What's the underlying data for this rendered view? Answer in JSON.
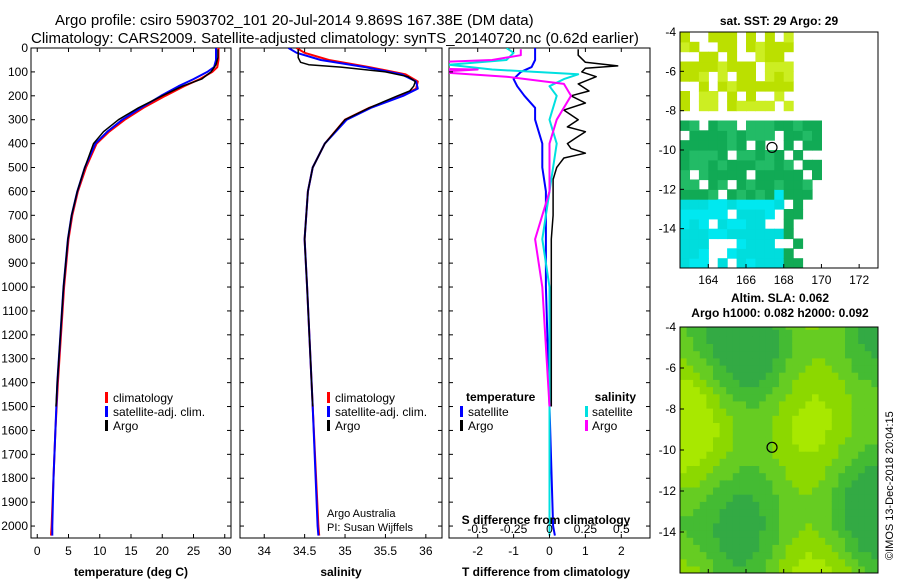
{
  "header": {
    "title_line1": "Argo profile: csiro 5903702_101 20-Jul-2014 9.869S 167.38E (DM data)",
    "title_line2": "Climatology: CARS2009. Satellite-adjusted climatology: synTS_20140720.nc (0.62d earlier)"
  },
  "colors": {
    "climatology": "#ff0000",
    "satellite": "#0000ff",
    "argo": "#000000",
    "salinity_satellite": "#00e0e0",
    "salinity_argo": "#ff00ff"
  },
  "chart_data": [
    {
      "id": "temperature",
      "type": "line",
      "xlabel": "temperature (deg C)",
      "ylabel": "",
      "xlim": [
        -1,
        31
      ],
      "ylim": [
        2050,
        0
      ],
      "x_ticks": [
        0,
        5,
        10,
        15,
        20,
        25,
        30
      ],
      "y_ticks": [
        0,
        100,
        200,
        300,
        400,
        500,
        600,
        700,
        800,
        900,
        1000,
        1100,
        1200,
        1300,
        1400,
        1500,
        1600,
        1700,
        1800,
        1900,
        2000
      ],
      "legend": {
        "placement": "center-right",
        "labels": [
          "climatology",
          "satellite-adj. clim.",
          "Argo"
        ]
      },
      "series": [
        {
          "name": "climatology",
          "color": "#ff0000",
          "depth": [
            0,
            50,
            80,
            100,
            130,
            160,
            200,
            250,
            300,
            350,
            400,
            500,
            600,
            700,
            800,
            1000,
            1200,
            1400,
            1600,
            1800,
            2000,
            2040
          ],
          "values": [
            29.0,
            29.0,
            28.8,
            28.0,
            26.0,
            23.5,
            20.5,
            17.0,
            14.0,
            11.5,
            9.5,
            7.8,
            6.5,
            5.6,
            5.0,
            4.3,
            3.8,
            3.3,
            2.9,
            2.6,
            2.3,
            2.2
          ]
        },
        {
          "name": "satellite-adj. clim.",
          "color": "#0000ff",
          "depth": [
            0,
            50,
            80,
            100,
            130,
            160,
            200,
            250,
            300,
            350,
            400,
            500,
            600,
            700,
            800,
            1000,
            1200,
            1400,
            1600,
            1800,
            2000,
            2040
          ],
          "values": [
            28.6,
            28.6,
            28.3,
            27.2,
            25.0,
            22.6,
            19.8,
            16.6,
            13.6,
            11.2,
            9.3,
            7.6,
            6.4,
            5.5,
            4.9,
            4.2,
            3.7,
            3.2,
            2.9,
            2.6,
            2.4,
            2.4
          ]
        },
        {
          "name": "Argo",
          "color": "#000000",
          "depth": [
            5,
            40,
            70,
            100,
            130,
            160,
            200,
            250,
            300,
            350,
            400,
            500,
            600,
            700,
            800,
            1000,
            1200,
            1400,
            1500
          ],
          "values": [
            28.9,
            28.9,
            28.6,
            27.8,
            26.3,
            23.2,
            20.0,
            16.2,
            13.0,
            10.6,
            9.0,
            7.6,
            6.4,
            5.5,
            4.9,
            4.2,
            3.7,
            3.2,
            3.0
          ]
        }
      ]
    },
    {
      "id": "salinity",
      "type": "line",
      "xlabel": "salinity",
      "ylabel": "",
      "xlim": [
        33.7,
        36.2
      ],
      "ylim": [
        2050,
        0
      ],
      "x_ticks": [
        34,
        34.5,
        35,
        35.5,
        36
      ],
      "x_tick_labels": [
        "34",
        "34.5",
        "35",
        "35.5",
        "36"
      ],
      "legend": {
        "placement": "center-right",
        "labels": [
          "climatology",
          "satellite-adj. clim.",
          "Argo"
        ]
      },
      "annotations": [
        "Argo Australia",
        "PI: Susan Wijffels"
      ],
      "series": [
        {
          "name": "climatology",
          "color": "#ff0000",
          "depth": [
            0,
            20,
            50,
            80,
            110,
            140,
            170,
            200,
            250,
            300,
            400,
            500,
            600,
            800,
            1000,
            1500,
            2000,
            2040
          ],
          "values": [
            34.4,
            34.5,
            34.8,
            35.3,
            35.75,
            35.9,
            35.88,
            35.7,
            35.3,
            35.0,
            34.75,
            34.6,
            34.54,
            34.5,
            34.53,
            34.6,
            34.67,
            34.68
          ]
        },
        {
          "name": "satellite-adj. clim.",
          "color": "#0000ff",
          "depth": [
            0,
            20,
            50,
            80,
            110,
            140,
            170,
            200,
            250,
            300,
            400,
            500,
            600,
            800,
            1000,
            1500,
            2000,
            2040
          ],
          "values": [
            34.3,
            34.4,
            34.7,
            35.25,
            35.7,
            35.88,
            35.9,
            35.72,
            35.32,
            35.02,
            34.75,
            34.6,
            34.54,
            34.5,
            34.53,
            34.6,
            34.66,
            34.67
          ]
        },
        {
          "name": "Argo",
          "color": "#000000",
          "depth": [
            5,
            20,
            40,
            60,
            70,
            80,
            100,
            120,
            140,
            160,
            180,
            200,
            250,
            300,
            400,
            500,
            600,
            800,
            1000,
            1500
          ],
          "values": [
            34.42,
            34.42,
            34.42,
            34.45,
            34.55,
            34.95,
            35.5,
            35.78,
            35.87,
            35.85,
            35.8,
            35.65,
            35.3,
            35.0,
            34.75,
            34.6,
            34.54,
            34.5,
            34.53,
            34.6
          ]
        }
      ]
    },
    {
      "id": "difference",
      "type": "line",
      "xlabel": "T difference from climatology",
      "ylabel": "",
      "xlim": [
        -2.8,
        2.8
      ],
      "ylim": [
        2050,
        0
      ],
      "x_ticks": [
        -2,
        -1,
        0,
        1,
        2
      ],
      "x_tick_labels": [
        "-2",
        "-1",
        "0",
        "1",
        "2"
      ],
      "top_axis_label": "S difference from climatology",
      "top_ticks": [
        -0.5,
        -0.25,
        0,
        0.25,
        0.5
      ],
      "top_tick_labels": [
        "-0.5",
        "-0.25",
        "0",
        "0.25",
        "0.5"
      ],
      "legend": {
        "placement": "center",
        "temperature_heading": "temperature",
        "salinity_heading": "salinity",
        "labels": [
          "satellite",
          "Argo"
        ]
      },
      "series": [
        {
          "name": "temperature satellite",
          "color": "#0000ff",
          "depth": [
            0,
            50,
            80,
            100,
            130,
            160,
            200,
            250,
            300,
            350,
            400,
            500,
            600,
            800,
            1000,
            1500,
            2000,
            2040
          ],
          "values": [
            -0.4,
            -0.4,
            -0.5,
            -0.8,
            -1.0,
            -0.9,
            -0.7,
            -0.4,
            -0.4,
            -0.3,
            -0.2,
            -0.2,
            -0.1,
            -0.1,
            -0.1,
            0.0,
            0.1,
            0.15
          ]
        },
        {
          "name": "temperature Argo",
          "color": "#000000",
          "depth": [
            5,
            30,
            60,
            75,
            85,
            100,
            120,
            150,
            180,
            200,
            230,
            260,
            300,
            330,
            350,
            380,
            400,
            420,
            440,
            460,
            480,
            500,
            550,
            600,
            700,
            800,
            1000,
            1500
          ],
          "values": [
            0.8,
            0.8,
            1.0,
            1.9,
            1.0,
            0.9,
            1.3,
            0.8,
            1.1,
            0.6,
            1.0,
            0.4,
            0.8,
            0.5,
            1.0,
            0.7,
            0.5,
            0.6,
            1.0,
            0.4,
            0.3,
            0.2,
            0.1,
            0.1,
            0.1,
            0.05,
            0.05,
            0.05
          ]
        },
        {
          "name": "salinity satellite",
          "color": "#00e0e0",
          "depth": [
            0,
            20,
            50,
            70,
            90,
            110,
            130,
            160,
            200,
            300,
            400,
            600,
            800,
            1000,
            1500,
            2000,
            2040
          ],
          "values": [
            -0.3,
            -0.25,
            -0.3,
            -0.7,
            -0.4,
            0.2,
            0.1,
            0.0,
            0.05,
            0.0,
            0.05,
            0.0,
            -0.05,
            0.0,
            0.0,
            0.0,
            0.0
          ]
        },
        {
          "name": "salinity Argo",
          "color": "#ff00ff",
          "depth": [
            5,
            30,
            50,
            70,
            80,
            90,
            100,
            120,
            150,
            200,
            300,
            400,
            600,
            800,
            1000,
            1500
          ],
          "values": [
            -0.2,
            -0.2,
            -0.4,
            -1.3,
            -1.5,
            -0.5,
            -0.8,
            -0.3,
            0.1,
            0.15,
            0.05,
            0.0,
            0.0,
            -0.1,
            -0.05,
            0.0
          ]
        }
      ]
    },
    {
      "id": "sst_map",
      "type": "heatmap",
      "title": "sat. SST: 29 Argo: 29",
      "xlim": [
        162.5,
        173
      ],
      "ylim": [
        -16,
        -4
      ],
      "x_ticks": [
        164,
        166,
        168,
        170,
        172
      ],
      "y_ticks": [
        -14,
        -12,
        -10,
        -8,
        -6,
        -4
      ],
      "marker": {
        "lon": 167.38,
        "lat": -9.869
      }
    },
    {
      "id": "sla_map",
      "type": "heatmap",
      "title": "Altim. SLA: 0.062",
      "subtitle": "Argo h1000: 0.082 h2000: 0.092",
      "xlim": [
        162.5,
        173
      ],
      "ylim": [
        -16,
        -4
      ],
      "x_ticks": [
        164,
        166,
        168,
        170,
        172
      ],
      "y_ticks": [
        -14,
        -12,
        -10,
        -8,
        -6,
        -4
      ],
      "marker": {
        "lon": 167.38,
        "lat": -9.869
      }
    }
  ],
  "footer": {
    "credit": "©IMOS 13-Dec-2018 20:04:15"
  }
}
